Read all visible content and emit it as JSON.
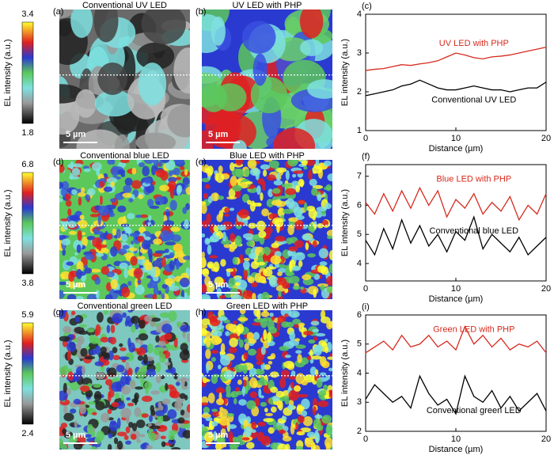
{
  "chart_data": [
    {
      "type": "line",
      "panel": "(c)",
      "xlabel": "Distance (µm)",
      "ylabel": "EL intensity (a.u.)",
      "x": [
        0,
        1,
        2,
        3,
        4,
        5,
        6,
        7,
        8,
        9,
        10,
        11,
        12,
        13,
        14,
        15,
        16,
        17,
        18,
        19,
        20
      ],
      "xlim": [
        0,
        20
      ],
      "xticks": [
        0,
        10,
        20
      ],
      "ylim": [
        1,
        4
      ],
      "yticks": [
        1,
        2,
        3,
        4
      ],
      "series": [
        {
          "name": "UV LED with PHP",
          "color": "#d62a1e",
          "values": [
            2.55,
            2.58,
            2.6,
            2.65,
            2.7,
            2.68,
            2.72,
            2.75,
            2.8,
            2.9,
            3.0,
            2.95,
            2.88,
            2.85,
            2.9,
            2.92,
            2.95,
            3.0,
            3.05,
            3.1,
            3.15
          ]
        },
        {
          "name": "Conventional UV LED",
          "color": "#000000",
          "values": [
            1.9,
            1.95,
            2.0,
            2.05,
            2.15,
            2.2,
            2.3,
            2.2,
            2.1,
            2.05,
            2.05,
            2.1,
            2.15,
            2.1,
            2.05,
            2.05,
            2.0,
            2.05,
            2.1,
            2.1,
            2.25
          ]
        }
      ]
    },
    {
      "type": "line",
      "panel": "(f)",
      "xlabel": "Distance (µm)",
      "ylabel": "EL intensity (a.u.)",
      "x": [
        0,
        1,
        2,
        3,
        4,
        5,
        6,
        7,
        8,
        9,
        10,
        11,
        12,
        13,
        14,
        15,
        16,
        17,
        18,
        19,
        20
      ],
      "xlim": [
        0,
        20
      ],
      "xticks": [
        0,
        10,
        20
      ],
      "ylim": [
        3.4,
        7.4
      ],
      "yticks": [
        4,
        5,
        6,
        7
      ],
      "series": [
        {
          "name": "Blue LED with PHP",
          "color": "#d62a1e",
          "values": [
            6.1,
            5.7,
            6.4,
            5.8,
            6.5,
            5.9,
            6.6,
            6.0,
            6.5,
            5.6,
            6.2,
            5.9,
            6.4,
            5.7,
            6.1,
            5.8,
            6.3,
            5.5,
            6.0,
            5.7,
            6.4
          ]
        },
        {
          "name": "Conventional blue LED",
          "color": "#000000",
          "values": [
            4.8,
            4.3,
            5.2,
            4.5,
            5.5,
            4.7,
            5.3,
            4.6,
            5.0,
            4.4,
            5.1,
            4.8,
            5.6,
            4.5,
            5.0,
            4.7,
            4.4,
            4.9,
            4.3,
            4.6,
            4.9
          ]
        }
      ]
    },
    {
      "type": "line",
      "panel": "(i)",
      "xlabel": "Distance (µm)",
      "ylabel": "EL intensity (a.u.)",
      "x": [
        0,
        1,
        2,
        3,
        4,
        5,
        6,
        7,
        8,
        9,
        10,
        11,
        12,
        13,
        14,
        15,
        16,
        17,
        18,
        19,
        20
      ],
      "xlim": [
        0,
        20
      ],
      "xticks": [
        0,
        10,
        20
      ],
      "ylim": [
        2,
        6
      ],
      "yticks": [
        2,
        3,
        4,
        5,
        6
      ],
      "series": [
        {
          "name": "Green LED with PHP",
          "color": "#d62a1e",
          "values": [
            4.7,
            4.9,
            5.1,
            4.8,
            5.3,
            4.9,
            5.0,
            5.3,
            4.9,
            5.1,
            4.8,
            5.6,
            5.0,
            5.3,
            4.9,
            5.2,
            4.8,
            5.0,
            4.9,
            5.1,
            4.7
          ]
        },
        {
          "name": "Conventional green LED",
          "color": "#000000",
          "values": [
            3.1,
            3.6,
            3.3,
            3.0,
            3.2,
            2.8,
            3.9,
            3.3,
            2.9,
            3.1,
            2.6,
            3.9,
            3.2,
            3.0,
            3.4,
            2.8,
            3.2,
            2.7,
            3.0,
            3.3,
            2.7
          ]
        }
      ]
    }
  ],
  "panels": [
    {
      "label": "(a)",
      "title": "Conventional UV LED",
      "scale": "5 µm"
    },
    {
      "label": "(b)",
      "title": "UV LED with PHP",
      "scale": "5 µm"
    },
    {
      "label": "(d)",
      "title": "Conventional blue LED",
      "scale": "5 µm"
    },
    {
      "label": "(e)",
      "title": "Blue LED with PHP",
      "scale": "5 µm"
    },
    {
      "label": "(g)",
      "title": "Conventional green LED",
      "scale": "5 µm"
    },
    {
      "label": "(h)",
      "title": "Green LED with PHP",
      "scale": "5 µm"
    }
  ],
  "colorbars": [
    {
      "title": "EL intensity (a.u.)",
      "max": 3.4,
      "min": 1.8
    },
    {
      "title": "EL intensity (a.u.)",
      "max": 6.8,
      "min": 3.8
    },
    {
      "title": "EL intensity (a.u.)",
      "max": 5.9,
      "min": 2.4
    }
  ]
}
